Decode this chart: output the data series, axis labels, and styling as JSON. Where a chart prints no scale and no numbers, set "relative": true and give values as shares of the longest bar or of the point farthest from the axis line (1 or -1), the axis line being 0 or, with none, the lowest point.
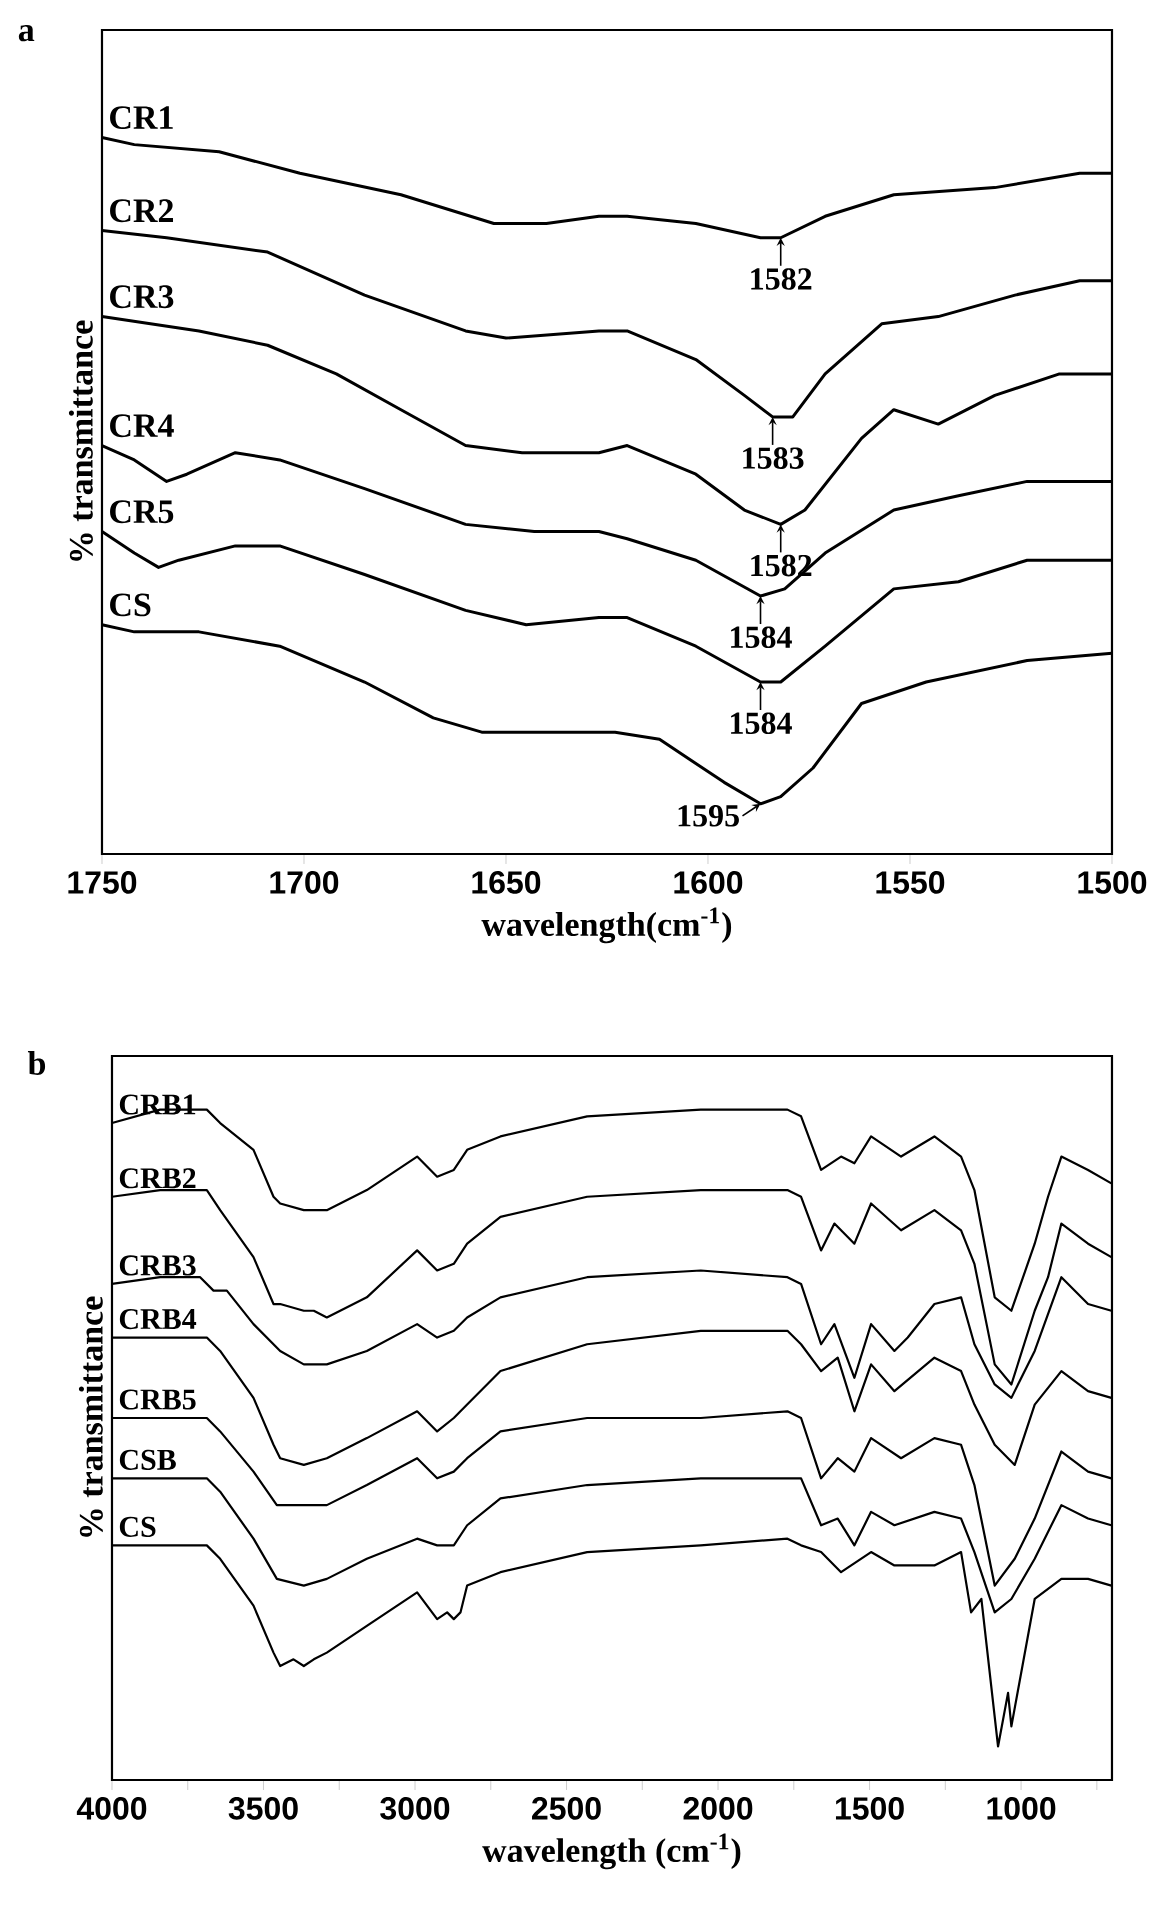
{
  "chart_data": [
    {
      "type": "line",
      "title": "a",
      "xlabel": "wavelength(cm$^{-1}$)",
      "ylabel": "% transmittance",
      "relative": true,
      "legend": false,
      "xlim": [
        1750,
        1500
      ],
      "xticks": [
        1750,
        1700,
        1650,
        1600,
        1550,
        1500
      ],
      "series": [
        {
          "name": "CR1",
          "color": "#000000",
          "x": [
            1750,
            1742,
            1721,
            1701,
            1676,
            1653,
            1640,
            1627,
            1620,
            1603,
            1587,
            1582,
            1571,
            1554,
            1529,
            1508,
            1500
          ],
          "values": [
            1.0,
            0.99,
            0.98,
            0.95,
            0.92,
            0.88,
            0.88,
            0.89,
            0.89,
            0.88,
            0.86,
            0.86,
            0.89,
            0.92,
            0.93,
            0.95,
            0.95
          ]
        },
        {
          "name": "CR2",
          "color": "#000000",
          "x": [
            1750,
            1734,
            1709,
            1685,
            1660,
            1650,
            1627,
            1620,
            1603,
            1591,
            1584,
            1579,
            1571,
            1557,
            1543,
            1524,
            1508,
            1500
          ],
          "values": [
            0.87,
            0.86,
            0.84,
            0.78,
            0.73,
            0.72,
            0.73,
            0.73,
            0.69,
            0.64,
            0.61,
            0.61,
            0.67,
            0.74,
            0.75,
            0.78,
            0.8,
            0.8
          ]
        },
        {
          "name": "CR3",
          "color": "#000000",
          "x": [
            1750,
            1726,
            1709,
            1692,
            1676,
            1660,
            1646,
            1627,
            1620,
            1603,
            1591,
            1582,
            1576,
            1562,
            1554,
            1543,
            1529,
            1513,
            1500
          ],
          "values": [
            0.75,
            0.73,
            0.71,
            0.67,
            0.62,
            0.57,
            0.56,
            0.56,
            0.57,
            0.53,
            0.48,
            0.46,
            0.48,
            0.58,
            0.62,
            0.6,
            0.64,
            0.67,
            0.67
          ]
        },
        {
          "name": "CR4",
          "color": "#000000",
          "x": [
            1750,
            1742,
            1734,
            1729,
            1717,
            1706,
            1685,
            1660,
            1643,
            1627,
            1620,
            1603,
            1587,
            1581,
            1571,
            1554,
            1538,
            1521,
            1500
          ],
          "values": [
            0.57,
            0.55,
            0.52,
            0.53,
            0.56,
            0.55,
            0.51,
            0.46,
            0.45,
            0.45,
            0.44,
            0.41,
            0.36,
            0.37,
            0.42,
            0.48,
            0.5,
            0.52,
            0.52
          ]
        },
        {
          "name": "CR5",
          "color": "#000000",
          "x": [
            1750,
            1742,
            1736,
            1731,
            1717,
            1706,
            1685,
            1660,
            1645,
            1627,
            1620,
            1603,
            1587,
            1582,
            1571,
            1554,
            1538,
            1521,
            1500
          ],
          "values": [
            0.45,
            0.42,
            0.4,
            0.41,
            0.43,
            0.43,
            0.39,
            0.34,
            0.32,
            0.33,
            0.33,
            0.29,
            0.24,
            0.24,
            0.29,
            0.37,
            0.38,
            0.41,
            0.41
          ]
        },
        {
          "name": "CS",
          "color": "#000000",
          "x": [
            1750,
            1742,
            1726,
            1706,
            1685,
            1668,
            1656,
            1623,
            1612,
            1596,
            1587,
            1582,
            1574,
            1562,
            1546,
            1521,
            1500
          ],
          "values": [
            0.32,
            0.31,
            0.31,
            0.29,
            0.24,
            0.19,
            0.17,
            0.17,
            0.16,
            0.1,
            0.07,
            0.08,
            0.12,
            0.21,
            0.24,
            0.27,
            0.28
          ]
        }
      ],
      "annotations": [
        {
          "text": "1582",
          "x": 1582,
          "y": 0.86
        },
        {
          "text": "1583",
          "x": 1584,
          "y": 0.61
        },
        {
          "text": "1582",
          "x": 1582,
          "y": 0.46
        },
        {
          "text": "1584",
          "x": 1587,
          "y": 0.36
        },
        {
          "text": "1584",
          "x": 1587,
          "y": 0.24
        },
        {
          "text": "1595",
          "x": 1587,
          "y": 0.07
        }
      ]
    },
    {
      "type": "line",
      "title": "b",
      "xlabel": "wavelength (cm$^{-1}$)",
      "ylabel": "% transmittance",
      "relative": true,
      "legend": false,
      "xlim": [
        4000,
        700
      ],
      "xticks": [
        4000,
        {
          "value": 3750,
          "label": null
        },
        3500,
        {
          "value": 3250,
          "label": null
        },
        3000,
        {
          "value": 2750,
          "label": null
        },
        2500,
        {
          "value": 2250,
          "label": null
        },
        2000,
        {
          "value": 1750,
          "label": null
        },
        1500,
        {
          "value": 1250,
          "label": null
        },
        1000,
        {
          "value": 750,
          "label": null
        }
      ],
      "series": [
        {
          "name": "CRB1",
          "color": "#000000",
          "x": [
            4000,
            3841,
            3687,
            3643,
            3533,
            3467,
            3445,
            3367,
            3291,
            3159,
            2993,
            2927,
            2872,
            2828,
            2718,
            2432,
            2057,
            1771,
            1726,
            1660,
            1594,
            1550,
            1495,
            1396,
            1286,
            1198,
            1154,
            1087,
            1032,
            955,
            911,
            867,
            779,
            702
          ],
          "values": [
            0.98,
            1.0,
            1.0,
            0.98,
            0.94,
            0.87,
            0.86,
            0.85,
            0.85,
            0.88,
            0.93,
            0.9,
            0.91,
            0.94,
            0.96,
            0.99,
            1.0,
            1.0,
            0.99,
            0.91,
            0.93,
            0.92,
            0.96,
            0.93,
            0.96,
            0.93,
            0.88,
            0.72,
            0.7,
            0.8,
            0.87,
            0.93,
            0.91,
            0.89
          ]
        },
        {
          "name": "CRB2",
          "color": "#000000",
          "x": [
            4000,
            3841,
            3687,
            3643,
            3533,
            3467,
            3445,
            3367,
            3334,
            3291,
            3159,
            2993,
            2927,
            2872,
            2828,
            2718,
            2432,
            2057,
            1771,
            1726,
            1660,
            1616,
            1550,
            1495,
            1396,
            1286,
            1198,
            1154,
            1087,
            1032,
            955,
            911,
            867,
            779,
            702
          ],
          "values": [
            0.87,
            0.88,
            0.88,
            0.85,
            0.78,
            0.71,
            0.71,
            0.7,
            0.7,
            0.69,
            0.72,
            0.79,
            0.76,
            0.77,
            0.8,
            0.84,
            0.87,
            0.88,
            0.88,
            0.87,
            0.79,
            0.83,
            0.8,
            0.86,
            0.82,
            0.85,
            0.82,
            0.77,
            0.62,
            0.59,
            0.7,
            0.75,
            0.83,
            0.8,
            0.78
          ]
        },
        {
          "name": "CRB3",
          "color": "#000000",
          "x": [
            4000,
            3841,
            3709,
            3665,
            3621,
            3533,
            3445,
            3367,
            3291,
            3159,
            2993,
            2927,
            2872,
            2828,
            2718,
            2432,
            2057,
            1771,
            1726,
            1660,
            1616,
            1550,
            1495,
            1418,
            1374,
            1286,
            1198,
            1154,
            1087,
            1032,
            955,
            867,
            779,
            702
          ],
          "values": [
            0.74,
            0.75,
            0.75,
            0.73,
            0.73,
            0.68,
            0.64,
            0.62,
            0.62,
            0.64,
            0.68,
            0.66,
            0.67,
            0.69,
            0.72,
            0.75,
            0.76,
            0.75,
            0.74,
            0.65,
            0.68,
            0.6,
            0.68,
            0.64,
            0.66,
            0.71,
            0.72,
            0.65,
            0.59,
            0.57,
            0.64,
            0.75,
            0.71,
            0.7
          ]
        },
        {
          "name": "CRB4",
          "color": "#000000",
          "x": [
            4000,
            3841,
            3687,
            3643,
            3533,
            3467,
            3445,
            3367,
            3291,
            3159,
            2993,
            2927,
            2872,
            2828,
            2718,
            2432,
            2057,
            1771,
            1726,
            1660,
            1605,
            1550,
            1495,
            1418,
            1286,
            1198,
            1154,
            1087,
            1021,
            955,
            867,
            779,
            702
          ],
          "values": [
            0.66,
            0.66,
            0.66,
            0.64,
            0.57,
            0.5,
            0.48,
            0.47,
            0.48,
            0.51,
            0.55,
            0.52,
            0.54,
            0.56,
            0.61,
            0.65,
            0.67,
            0.67,
            0.65,
            0.61,
            0.63,
            0.55,
            0.62,
            0.58,
            0.63,
            0.61,
            0.56,
            0.5,
            0.47,
            0.56,
            0.61,
            0.58,
            0.57
          ]
        },
        {
          "name": "CRB5",
          "color": "#000000",
          "x": [
            4000,
            3841,
            3687,
            3643,
            3533,
            3456,
            3367,
            3291,
            3159,
            2993,
            2927,
            2872,
            2828,
            2718,
            2432,
            2057,
            1771,
            1726,
            1660,
            1605,
            1550,
            1495,
            1396,
            1286,
            1198,
            1154,
            1087,
            1021,
            955,
            867,
            779,
            702
          ],
          "values": [
            0.54,
            0.54,
            0.54,
            0.52,
            0.46,
            0.41,
            0.41,
            0.41,
            0.44,
            0.48,
            0.45,
            0.46,
            0.48,
            0.52,
            0.54,
            0.54,
            0.55,
            0.54,
            0.45,
            0.48,
            0.46,
            0.51,
            0.48,
            0.51,
            0.5,
            0.44,
            0.29,
            0.33,
            0.39,
            0.49,
            0.46,
            0.45
          ]
        },
        {
          "name": "CSB",
          "color": "#000000",
          "x": [
            4000,
            3841,
            3687,
            3643,
            3533,
            3456,
            3367,
            3291,
            3159,
            2993,
            2927,
            2872,
            2828,
            2718,
            2432,
            2057,
            1771,
            1726,
            1660,
            1605,
            1550,
            1495,
            1418,
            1286,
            1198,
            1154,
            1087,
            1032,
            955,
            867,
            779,
            702
          ],
          "values": [
            0.45,
            0.45,
            0.45,
            0.43,
            0.36,
            0.3,
            0.29,
            0.3,
            0.33,
            0.36,
            0.35,
            0.35,
            0.38,
            0.42,
            0.44,
            0.45,
            0.45,
            0.45,
            0.38,
            0.39,
            0.35,
            0.4,
            0.38,
            0.4,
            0.39,
            0.34,
            0.25,
            0.27,
            0.33,
            0.41,
            0.39,
            0.38
          ]
        },
        {
          "name": "CS",
          "color": "#000000",
          "x": [
            4000,
            3841,
            3687,
            3643,
            3533,
            3467,
            3445,
            3401,
            3367,
            3334,
            3291,
            3159,
            2993,
            2927,
            2894,
            2872,
            2850,
            2828,
            2718,
            2432,
            2057,
            1771,
            1726,
            1660,
            1594,
            1495,
            1418,
            1286,
            1198,
            1165,
            1131,
            1076,
            1043,
            1032,
            955,
            867,
            779,
            702
          ],
          "values": [
            0.35,
            0.35,
            0.35,
            0.33,
            0.26,
            0.19,
            0.17,
            0.18,
            0.17,
            0.18,
            0.19,
            0.23,
            0.28,
            0.24,
            0.25,
            0.24,
            0.25,
            0.29,
            0.31,
            0.34,
            0.35,
            0.36,
            0.35,
            0.34,
            0.31,
            0.34,
            0.32,
            0.32,
            0.34,
            0.25,
            0.27,
            0.05,
            0.13,
            0.08,
            0.27,
            0.3,
            0.3,
            0.29
          ]
        }
      ]
    }
  ]
}
